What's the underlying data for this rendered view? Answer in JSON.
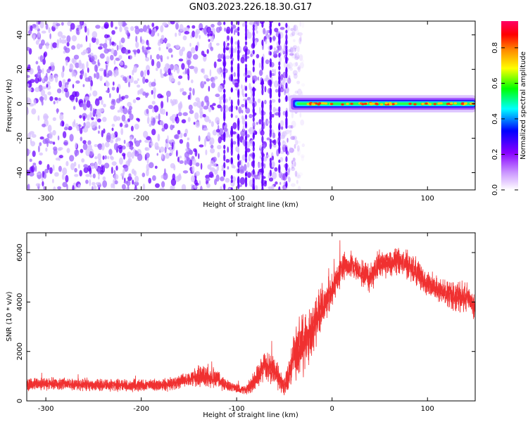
{
  "title": "GN03.2023.226.18.30.G17",
  "chart_data": [
    {
      "type": "heatmap",
      "title": "",
      "xlabel": "Height of straight line (km)",
      "ylabel": "Frequency (Hz)",
      "xlim": [
        -320,
        150
      ],
      "ylim": [
        -50,
        48
      ],
      "x_ticks": [
        -300,
        -200,
        -100,
        0,
        100
      ],
      "y_ticks": [
        -40,
        -20,
        0,
        20,
        40
      ],
      "colorbar": {
        "label": "Normalized spectral amplitude",
        "range": [
          0,
          0.95
        ],
        "ticks": [
          0.0,
          0.2,
          0.4,
          0.6,
          0.8
        ],
        "colors": [
          "#ffffff",
          "#cc99ff",
          "#8800ff",
          "#0000ff",
          "#00ffff",
          "#00ff00",
          "#ffff00",
          "#ff8800",
          "#ff0000",
          "#ff0066"
        ]
      },
      "features": {
        "noise_region_x": [
          -320,
          -30
        ],
        "narrowband_signal_x": [
          -45,
          150
        ],
        "narrowband_signal_frequency": 0,
        "narrowband_signal_peak_amplitude": 0.85
      }
    },
    {
      "type": "line",
      "title": "",
      "xlabel": "Height of straight line (km)",
      "ylabel": "SNR (10 * v/v)",
      "xlim": [
        -320,
        150
      ],
      "ylim": [
        0,
        6800
      ],
      "x_ticks": [
        -300,
        -200,
        -100,
        0,
        100
      ],
      "y_ticks": [
        0,
        2000,
        4000,
        6000
      ],
      "series": [
        {
          "color": "#f03030",
          "x": [
            -320,
            -300,
            -280,
            -260,
            -240,
            -220,
            -200,
            -180,
            -160,
            -140,
            -120,
            -110,
            -100,
            -90,
            -80,
            -70,
            -60,
            -50,
            -40,
            -30,
            -20,
            -10,
            0,
            10,
            20,
            30,
            40,
            50,
            60,
            70,
            80,
            90,
            100,
            110,
            120,
            130,
            140,
            150
          ],
          "values": [
            650,
            700,
            680,
            650,
            660,
            620,
            630,
            640,
            750,
            1000,
            900,
            600,
            500,
            450,
            900,
            1500,
            1200,
            500,
            1800,
            2400,
            3000,
            3800,
            4400,
            5400,
            5500,
            5200,
            5000,
            5600,
            5600,
            5700,
            5500,
            5100,
            4800,
            4500,
            4400,
            4200,
            4200,
            3800
          ],
          "spread": [
            300,
            300,
            300,
            300,
            300,
            300,
            300,
            300,
            350,
            500,
            450,
            300,
            250,
            250,
            600,
            700,
            700,
            400,
            1300,
            1600,
            1400,
            1000,
            900,
            700,
            600,
            600,
            700,
            700,
            700,
            700,
            700,
            700,
            700,
            600,
            600,
            700,
            700,
            600
          ]
        }
      ]
    }
  ]
}
